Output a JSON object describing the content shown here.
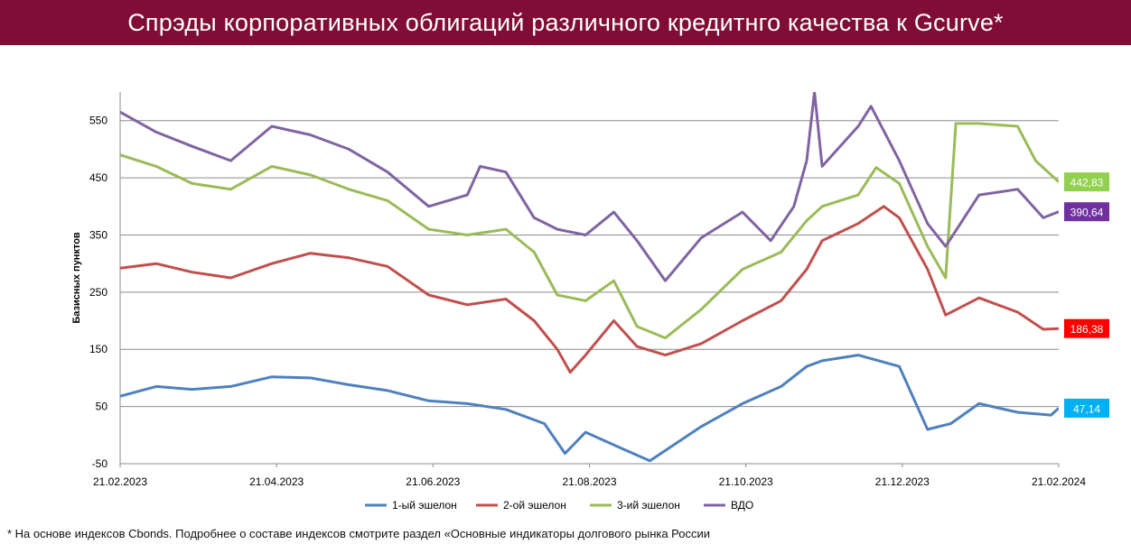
{
  "header": {
    "title": "Спрэды корпоративных облигаций  различного кредитнго качества к Gcurve*"
  },
  "footnote": "* На основе индексов Cbonds. Подробнее о составе индексов смотрите раздел «Основные индикаторы долгового рынка России",
  "chart_data": {
    "type": "line",
    "title": "",
    "ylabel": "Базисных пунктов",
    "xlabel": "",
    "ylim": [
      -50,
      600
    ],
    "yticks": [
      -50,
      50,
      150,
      250,
      350,
      450,
      550
    ],
    "x_range": [
      "2023-02-21",
      "2024-02-21"
    ],
    "x_tick_labels": [
      "21.02.2023",
      "21.04.2023",
      "21.06.2023",
      "21.08.2023",
      "21.10.2023",
      "21.12.2023",
      "21.02.2024"
    ],
    "grid": "horizontal",
    "legend": "bottom",
    "series": [
      {
        "name": "1-ый эшелон",
        "color": "#4f81bd",
        "last_label": "47,14",
        "label_color": "#00b0f0",
        "points": [
          [
            "2023-02-21",
            68
          ],
          [
            "2023-03-07",
            85
          ],
          [
            "2023-03-21",
            80
          ],
          [
            "2023-04-05",
            85
          ],
          [
            "2023-04-21",
            102
          ],
          [
            "2023-05-06",
            100
          ],
          [
            "2023-05-21",
            88
          ],
          [
            "2023-06-05",
            78
          ],
          [
            "2023-06-21",
            60
          ],
          [
            "2023-07-06",
            55
          ],
          [
            "2023-07-21",
            45
          ],
          [
            "2023-08-05",
            20
          ],
          [
            "2023-08-13",
            -32
          ],
          [
            "2023-08-21",
            5
          ],
          [
            "2023-09-05",
            -25
          ],
          [
            "2023-09-15",
            -45
          ],
          [
            "2023-09-25",
            -15
          ],
          [
            "2023-10-05",
            15
          ],
          [
            "2023-10-21",
            55
          ],
          [
            "2023-11-05",
            85
          ],
          [
            "2023-11-15",
            120
          ],
          [
            "2023-11-21",
            130
          ],
          [
            "2023-12-05",
            140
          ],
          [
            "2023-12-21",
            120
          ],
          [
            "2024-01-01",
            10
          ],
          [
            "2024-01-10",
            20
          ],
          [
            "2024-01-21",
            55
          ],
          [
            "2024-02-05",
            40
          ],
          [
            "2024-02-18",
            35
          ],
          [
            "2024-02-21",
            47.14
          ]
        ]
      },
      {
        "name": "2-ой эшелон",
        "color": "#c0504d",
        "last_label": "186,38",
        "label_color": "#ff0000",
        "points": [
          [
            "2023-02-21",
            292
          ],
          [
            "2023-03-07",
            300
          ],
          [
            "2023-03-21",
            285
          ],
          [
            "2023-04-05",
            275
          ],
          [
            "2023-04-21",
            300
          ],
          [
            "2023-05-06",
            318
          ],
          [
            "2023-05-21",
            310
          ],
          [
            "2023-06-05",
            295
          ],
          [
            "2023-06-21",
            245
          ],
          [
            "2023-07-06",
            228
          ],
          [
            "2023-07-21",
            238
          ],
          [
            "2023-08-01",
            200
          ],
          [
            "2023-08-10",
            150
          ],
          [
            "2023-08-15",
            110
          ],
          [
            "2023-08-21",
            140
          ],
          [
            "2023-09-01",
            200
          ],
          [
            "2023-09-10",
            155
          ],
          [
            "2023-09-21",
            140
          ],
          [
            "2023-10-05",
            160
          ],
          [
            "2023-10-21",
            200
          ],
          [
            "2023-11-05",
            235
          ],
          [
            "2023-11-15",
            290
          ],
          [
            "2023-11-21",
            340
          ],
          [
            "2023-12-05",
            370
          ],
          [
            "2023-12-15",
            400
          ],
          [
            "2023-12-21",
            380
          ],
          [
            "2024-01-01",
            290
          ],
          [
            "2024-01-08",
            210
          ],
          [
            "2024-01-21",
            240
          ],
          [
            "2024-02-05",
            215
          ],
          [
            "2024-02-15",
            185
          ],
          [
            "2024-02-21",
            186.38
          ]
        ]
      },
      {
        "name": "3-ий эшелон",
        "color": "#9bbb59",
        "last_label": "442,83",
        "label_color": "#92d050",
        "points": [
          [
            "2023-02-21",
            490
          ],
          [
            "2023-03-07",
            470
          ],
          [
            "2023-03-21",
            440
          ],
          [
            "2023-04-05",
            430
          ],
          [
            "2023-04-21",
            470
          ],
          [
            "2023-05-06",
            455
          ],
          [
            "2023-05-21",
            430
          ],
          [
            "2023-06-05",
            410
          ],
          [
            "2023-06-21",
            360
          ],
          [
            "2023-07-06",
            350
          ],
          [
            "2023-07-21",
            360
          ],
          [
            "2023-08-01",
            320
          ],
          [
            "2023-08-10",
            245
          ],
          [
            "2023-08-21",
            235
          ],
          [
            "2023-09-01",
            270
          ],
          [
            "2023-09-10",
            190
          ],
          [
            "2023-09-21",
            170
          ],
          [
            "2023-10-05",
            220
          ],
          [
            "2023-10-21",
            290
          ],
          [
            "2023-11-05",
            320
          ],
          [
            "2023-11-15",
            375
          ],
          [
            "2023-11-21",
            400
          ],
          [
            "2023-12-05",
            420
          ],
          [
            "2023-12-12",
            468
          ],
          [
            "2023-12-21",
            440
          ],
          [
            "2024-01-01",
            330
          ],
          [
            "2024-01-08",
            275
          ],
          [
            "2024-01-12",
            545
          ],
          [
            "2024-01-21",
            545
          ],
          [
            "2024-02-05",
            540
          ],
          [
            "2024-02-12",
            480
          ],
          [
            "2024-02-21",
            442.83
          ]
        ]
      },
      {
        "name": "ВДО",
        "color": "#8064a2",
        "last_label": "390,64",
        "label_color": "#7030a0",
        "points": [
          [
            "2023-02-21",
            565
          ],
          [
            "2023-03-07",
            530
          ],
          [
            "2023-03-21",
            505
          ],
          [
            "2023-04-05",
            480
          ],
          [
            "2023-04-21",
            540
          ],
          [
            "2023-05-06",
            525
          ],
          [
            "2023-05-21",
            500
          ],
          [
            "2023-06-05",
            460
          ],
          [
            "2023-06-21",
            400
          ],
          [
            "2023-07-06",
            420
          ],
          [
            "2023-07-11",
            470
          ],
          [
            "2023-07-21",
            460
          ],
          [
            "2023-08-01",
            380
          ],
          [
            "2023-08-10",
            360
          ],
          [
            "2023-08-21",
            350
          ],
          [
            "2023-09-01",
            390
          ],
          [
            "2023-09-10",
            340
          ],
          [
            "2023-09-21",
            270
          ],
          [
            "2023-10-05",
            345
          ],
          [
            "2023-10-21",
            390
          ],
          [
            "2023-11-01",
            340
          ],
          [
            "2023-11-10",
            400
          ],
          [
            "2023-11-15",
            480
          ],
          [
            "2023-11-18",
            600
          ],
          [
            "2023-11-21",
            470
          ],
          [
            "2023-12-05",
            540
          ],
          [
            "2023-12-10",
            575
          ],
          [
            "2023-12-21",
            480
          ],
          [
            "2024-01-01",
            370
          ],
          [
            "2024-01-08",
            330
          ],
          [
            "2024-01-21",
            420
          ],
          [
            "2024-02-05",
            430
          ],
          [
            "2024-02-15",
            380
          ],
          [
            "2024-02-21",
            390.64
          ]
        ]
      }
    ]
  }
}
